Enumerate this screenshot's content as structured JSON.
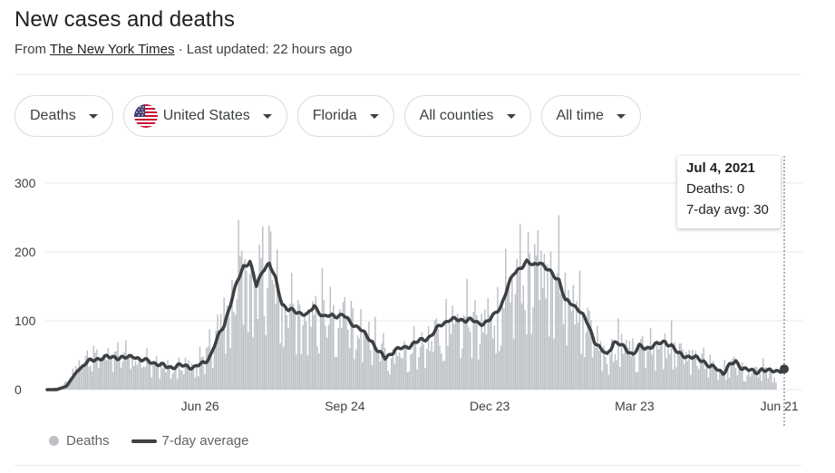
{
  "header": {
    "title": "New cases and deaths",
    "source_prefix": "From ",
    "source_name": "The New York Times",
    "updated": " · Last updated: 22 hours ago"
  },
  "filters": {
    "metric": "Deaths",
    "country": "United States",
    "state": "Florida",
    "county": "All counties",
    "range": "All time"
  },
  "tooltip": {
    "date": "Jul 4, 2021",
    "deaths_text": "Deaths: 0",
    "avg_text": "7-day avg: 30"
  },
  "legend": {
    "bars": "Deaths",
    "line": "7-day average"
  },
  "colors": {
    "bars": "#bdc1c6",
    "line": "#3c4043",
    "grid": "#e8eaed"
  },
  "chart_data": {
    "type": "bar",
    "y_ticks": [
      0,
      100,
      200,
      300
    ],
    "ylim": [
      0,
      300
    ],
    "x_ticks": [
      {
        "label": "Jun 26",
        "day": 95
      },
      {
        "label": "Sep 24",
        "day": 185
      },
      {
        "label": "Dec 23",
        "day": 275
      },
      {
        "label": "Mar 23",
        "day": 365
      },
      {
        "label": "Jun 21",
        "day": 455
      }
    ],
    "start_date": "2020-03-23",
    "series": [
      {
        "name": "Deaths",
        "kind": "bar",
        "anchors": [
          [
            0,
            0
          ],
          [
            10,
            5
          ],
          [
            20,
            35
          ],
          [
            30,
            47
          ],
          [
            40,
            48
          ],
          [
            50,
            50
          ],
          [
            55,
            38
          ],
          [
            60,
            42
          ],
          [
            70,
            35
          ],
          [
            80,
            34
          ],
          [
            90,
            35
          ],
          [
            100,
            55
          ],
          [
            105,
            80
          ],
          [
            110,
            110
          ],
          [
            115,
            140
          ],
          [
            120,
            175
          ],
          [
            125,
            185
          ],
          [
            130,
            160
          ],
          [
            135,
            175
          ],
          [
            140,
            180
          ],
          [
            145,
            150
          ],
          [
            150,
            120
          ],
          [
            155,
            115
          ],
          [
            160,
            115
          ],
          [
            165,
            105
          ],
          [
            170,
            120
          ],
          [
            175,
            110
          ],
          [
            180,
            105
          ],
          [
            185,
            110
          ],
          [
            190,
            100
          ],
          [
            195,
            90
          ],
          [
            200,
            85
          ],
          [
            205,
            70
          ],
          [
            210,
            55
          ],
          [
            215,
            45
          ],
          [
            220,
            55
          ],
          [
            225,
            55
          ],
          [
            230,
            65
          ],
          [
            235,
            70
          ],
          [
            240,
            75
          ],
          [
            245,
            90
          ],
          [
            250,
            100
          ],
          [
            255,
            100
          ],
          [
            260,
            105
          ],
          [
            265,
            100
          ],
          [
            270,
            95
          ],
          [
            275,
            105
          ],
          [
            280,
            120
          ],
          [
            285,
            140
          ],
          [
            290,
            165
          ],
          [
            295,
            175
          ],
          [
            300,
            180
          ],
          [
            305,
            180
          ],
          [
            310,
            175
          ],
          [
            315,
            165
          ],
          [
            320,
            160
          ],
          [
            325,
            130
          ],
          [
            330,
            125
          ],
          [
            335,
            100
          ],
          [
            340,
            75
          ],
          [
            345,
            60
          ],
          [
            350,
            45
          ],
          [
            355,
            75
          ],
          [
            360,
            65
          ],
          [
            365,
            55
          ],
          [
            370,
            60
          ],
          [
            375,
            60
          ],
          [
            380,
            62
          ],
          [
            385,
            68
          ],
          [
            390,
            65
          ],
          [
            395,
            52
          ],
          [
            400,
            48
          ],
          [
            405,
            45
          ],
          [
            410,
            40
          ],
          [
            415,
            35
          ],
          [
            420,
            28
          ],
          [
            425,
            38
          ],
          [
            430,
            32
          ],
          [
            435,
            25
          ],
          [
            440,
            26
          ],
          [
            445,
            30
          ],
          [
            450,
            28
          ],
          [
            455,
            0
          ]
        ]
      },
      {
        "name": "7-day average",
        "kind": "line",
        "anchors": [
          [
            0,
            0
          ],
          [
            6,
            0
          ],
          [
            12,
            5
          ],
          [
            18,
            25
          ],
          [
            24,
            38
          ],
          [
            30,
            45
          ],
          [
            36,
            46
          ],
          [
            42,
            48
          ],
          [
            48,
            45
          ],
          [
            54,
            50
          ],
          [
            58,
            42
          ],
          [
            64,
            42
          ],
          [
            70,
            35
          ],
          [
            78,
            33
          ],
          [
            86,
            35
          ],
          [
            92,
            32
          ],
          [
            98,
            40
          ],
          [
            102,
            52
          ],
          [
            106,
            75
          ],
          [
            110,
            95
          ],
          [
            114,
            125
          ],
          [
            118,
            155
          ],
          [
            122,
            180
          ],
          [
            126,
            185
          ],
          [
            130,
            150
          ],
          [
            134,
            175
          ],
          [
            138,
            182
          ],
          [
            142,
            160
          ],
          [
            146,
            125
          ],
          [
            150,
            115
          ],
          [
            156,
            113
          ],
          [
            162,
            108
          ],
          [
            166,
            122
          ],
          [
            172,
            105
          ],
          [
            178,
            108
          ],
          [
            184,
            108
          ],
          [
            188,
            98
          ],
          [
            194,
            90
          ],
          [
            198,
            78
          ],
          [
            202,
            70
          ],
          [
            206,
            55
          ],
          [
            210,
            45
          ],
          [
            216,
            58
          ],
          [
            222,
            60
          ],
          [
            228,
            68
          ],
          [
            234,
            72
          ],
          [
            238,
            78
          ],
          [
            244,
            92
          ],
          [
            250,
            103
          ],
          [
            256,
            100
          ],
          [
            262,
            103
          ],
          [
            268,
            95
          ],
          [
            274,
            100
          ],
          [
            278,
            108
          ],
          [
            282,
            122
          ],
          [
            286,
            148
          ],
          [
            290,
            168
          ],
          [
            294,
            178
          ],
          [
            298,
            185
          ],
          [
            302,
            180
          ],
          [
            306,
            187
          ],
          [
            310,
            175
          ],
          [
            314,
            168
          ],
          [
            318,
            160
          ],
          [
            322,
            128
          ],
          [
            326,
            125
          ],
          [
            330,
            118
          ],
          [
            336,
            95
          ],
          [
            340,
            72
          ],
          [
            344,
            58
          ],
          [
            348,
            50
          ],
          [
            352,
            70
          ],
          [
            356,
            65
          ],
          [
            360,
            58
          ],
          [
            364,
            52
          ],
          [
            368,
            62
          ],
          [
            372,
            60
          ],
          [
            376,
            64
          ],
          [
            380,
            66
          ],
          [
            384,
            70
          ],
          [
            388,
            64
          ],
          [
            392,
            52
          ],
          [
            396,
            50
          ],
          [
            400,
            47
          ],
          [
            404,
            45
          ],
          [
            408,
            42
          ],
          [
            412,
            33
          ],
          [
            416,
            30
          ],
          [
            420,
            25
          ],
          [
            424,
            35
          ],
          [
            428,
            40
          ],
          [
            432,
            32
          ],
          [
            436,
            28
          ],
          [
            440,
            25
          ],
          [
            444,
            30
          ],
          [
            448,
            26
          ],
          [
            452,
            28
          ],
          [
            456,
            28
          ],
          [
            458,
            30
          ]
        ]
      }
    ]
  }
}
